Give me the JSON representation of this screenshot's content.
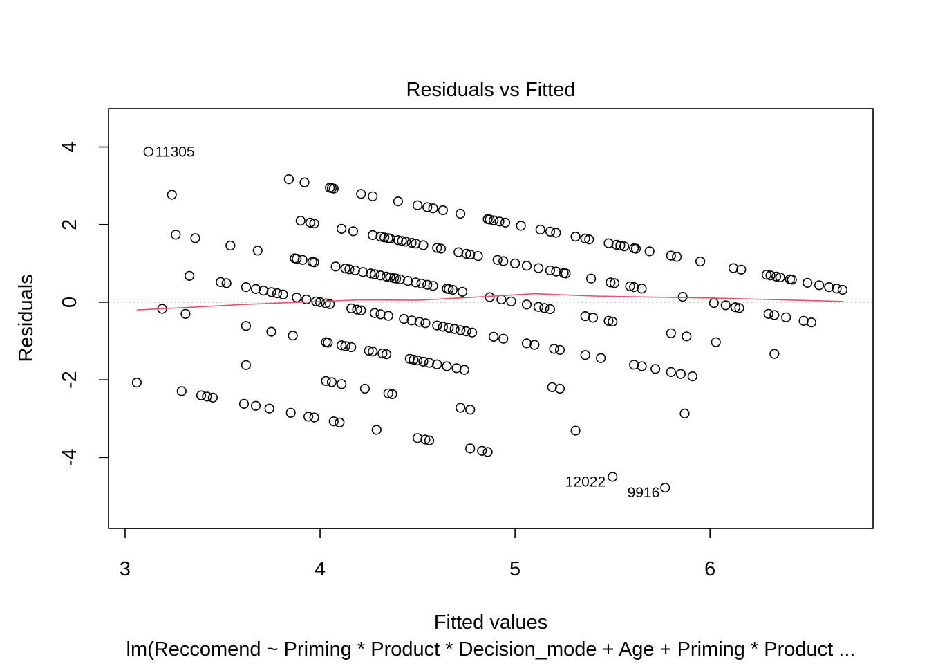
{
  "chart_data": {
    "type": "scatter",
    "title": "Residuals vs Fitted",
    "xlabel": "Fitted values",
    "ylabel": "Residuals",
    "subtitle": "lm(Reccomend ~ Priming * Product * Decision_mode + Age + Priming * Product  ...",
    "xlim": [
      2.915,
      6.836
    ],
    "ylim": [
      -5.83,
      4.99
    ],
    "x_ticks": [
      3,
      4,
      5,
      6
    ],
    "y_ticks": [
      -4,
      -2,
      0,
      2,
      4
    ],
    "x_tick_labels": [
      "3",
      "4",
      "5",
      "6"
    ],
    "y_tick_labels": [
      "-4",
      "-2",
      "0",
      "2",
      "4"
    ],
    "reference_line": {
      "y": 0,
      "style": "dotted",
      "color": "#bebebe"
    },
    "grid": false,
    "legend": "none",
    "point_style": "open-circle",
    "smoother_color": "#df536b",
    "smoother": [
      [
        3.06,
        -0.2
      ],
      [
        3.3,
        -0.14
      ],
      [
        3.6,
        -0.06
      ],
      [
        3.9,
        0.0
      ],
      [
        4.2,
        0.06
      ],
      [
        4.5,
        0.05
      ],
      [
        4.8,
        0.13
      ],
      [
        5.1,
        0.22
      ],
      [
        5.4,
        0.16
      ],
      [
        5.7,
        0.13
      ],
      [
        6.0,
        0.11
      ],
      [
        6.3,
        0.07
      ],
      [
        6.68,
        0.02
      ]
    ],
    "annotations": [
      {
        "label": "11305",
        "x": 3.12,
        "y": 3.88,
        "side": "right"
      },
      {
        "label": "12022",
        "x": 5.5,
        "y": -4.5,
        "side": "left"
      },
      {
        "label": "9916",
        "x": 5.77,
        "y": -4.78,
        "side": "left-below"
      }
    ],
    "points": [
      [
        3.12,
        3.88
      ],
      [
        3.24,
        2.77
      ],
      [
        3.26,
        1.74
      ],
      [
        3.36,
        1.65
      ],
      [
        3.33,
        0.68
      ],
      [
        3.19,
        -0.17
      ],
      [
        3.31,
        -0.3
      ],
      [
        3.06,
        -2.07
      ],
      [
        3.29,
        -2.29
      ],
      [
        3.39,
        -2.4
      ],
      [
        3.42,
        -2.43
      ],
      [
        3.45,
        -2.46
      ],
      [
        3.54,
        1.46
      ],
      [
        3.68,
        1.33
      ],
      [
        3.49,
        0.52
      ],
      [
        3.52,
        0.49
      ],
      [
        3.62,
        0.39
      ],
      [
        3.67,
        0.34
      ],
      [
        3.71,
        0.3
      ],
      [
        3.75,
        0.26
      ],
      [
        3.78,
        0.23
      ],
      [
        3.81,
        0.2
      ],
      [
        3.62,
        -0.61
      ],
      [
        3.75,
        -0.76
      ],
      [
        3.86,
        -0.86
      ],
      [
        3.62,
        -1.62
      ],
      [
        3.61,
        -2.62
      ],
      [
        3.67,
        -2.67
      ],
      [
        3.74,
        -2.74
      ],
      [
        3.85,
        -2.85
      ],
      [
        3.94,
        -2.95
      ],
      [
        3.97,
        -2.97
      ],
      [
        3.84,
        3.17
      ],
      [
        3.92,
        3.09
      ],
      [
        3.9,
        2.1
      ],
      [
        3.95,
        2.05
      ],
      [
        3.97,
        2.03
      ],
      [
        3.87,
        1.13
      ],
      [
        3.88,
        1.12
      ],
      [
        3.91,
        1.09
      ],
      [
        3.96,
        1.04
      ],
      [
        3.97,
        1.03
      ],
      [
        3.88,
        0.12
      ],
      [
        3.93,
        0.07
      ],
      [
        3.98,
        0.02
      ],
      [
        4.0,
        0.0
      ],
      [
        4.03,
        -0.03
      ],
      [
        4.05,
        -0.05
      ],
      [
        4.03,
        -1.03
      ],
      [
        4.04,
        -1.04
      ],
      [
        4.03,
        -2.03
      ],
      [
        4.06,
        -2.06
      ],
      [
        4.07,
        -3.07
      ],
      [
        4.1,
        -3.1
      ],
      [
        4.11,
        -2.11
      ],
      [
        4.05,
        2.95
      ],
      [
        4.06,
        2.94
      ],
      [
        4.07,
        2.93
      ],
      [
        4.21,
        2.79
      ],
      [
        4.27,
        2.73
      ],
      [
        4.11,
        1.89
      ],
      [
        4.17,
        1.83
      ],
      [
        4.08,
        0.92
      ],
      [
        4.13,
        0.87
      ],
      [
        4.15,
        0.85
      ],
      [
        4.18,
        0.82
      ],
      [
        4.22,
        0.78
      ],
      [
        4.26,
        0.74
      ],
      [
        4.28,
        0.72
      ],
      [
        4.16,
        -0.16
      ],
      [
        4.19,
        -0.19
      ],
      [
        4.21,
        -0.21
      ],
      [
        4.11,
        -1.11
      ],
      [
        4.13,
        -1.13
      ],
      [
        4.16,
        -1.16
      ],
      [
        4.23,
        -2.23
      ],
      [
        4.29,
        -3.29
      ],
      [
        4.27,
        1.73
      ],
      [
        4.31,
        1.69
      ],
      [
        4.33,
        1.67
      ],
      [
        4.35,
        1.65
      ],
      [
        4.36,
        1.64
      ],
      [
        4.4,
        1.6
      ],
      [
        4.42,
        1.58
      ],
      [
        4.44,
        1.56
      ],
      [
        4.47,
        1.53
      ],
      [
        4.49,
        1.51
      ],
      [
        4.53,
        1.47
      ],
      [
        4.31,
        0.69
      ],
      [
        4.34,
        0.66
      ],
      [
        4.36,
        0.64
      ],
      [
        4.38,
        0.62
      ],
      [
        4.39,
        0.61
      ],
      [
        4.41,
        0.59
      ],
      [
        4.45,
        0.55
      ],
      [
        4.49,
        0.51
      ],
      [
        4.52,
        0.48
      ],
      [
        4.55,
        0.45
      ],
      [
        4.58,
        0.42
      ],
      [
        4.28,
        -0.28
      ],
      [
        4.31,
        -0.31
      ],
      [
        4.35,
        -0.35
      ],
      [
        4.43,
        -0.43
      ],
      [
        4.47,
        -0.47
      ],
      [
        4.51,
        -0.51
      ],
      [
        4.54,
        -0.54
      ],
      [
        4.25,
        -1.25
      ],
      [
        4.27,
        -1.27
      ],
      [
        4.32,
        -1.32
      ],
      [
        4.34,
        -1.34
      ],
      [
        4.35,
        -2.35
      ],
      [
        4.37,
        -2.37
      ],
      [
        4.4,
        2.6
      ],
      [
        4.5,
        2.5
      ],
      [
        4.55,
        2.45
      ],
      [
        4.58,
        2.42
      ],
      [
        4.63,
        2.37
      ],
      [
        4.46,
        -1.46
      ],
      [
        4.48,
        -1.48
      ],
      [
        4.5,
        -1.5
      ],
      [
        4.53,
        -1.53
      ],
      [
        4.56,
        -1.56
      ],
      [
        4.6,
        -1.6
      ],
      [
        4.65,
        -1.65
      ],
      [
        4.5,
        -3.5
      ],
      [
        4.54,
        -3.54
      ],
      [
        4.56,
        -3.56
      ],
      [
        4.6,
        -0.6
      ],
      [
        4.63,
        -0.63
      ],
      [
        4.66,
        -0.66
      ],
      [
        4.69,
        -0.69
      ],
      [
        4.72,
        -0.72
      ],
      [
        4.75,
        -0.75
      ],
      [
        4.78,
        -0.78
      ],
      [
        4.6,
        1.4
      ],
      [
        4.62,
        1.38
      ],
      [
        4.65,
        0.35
      ],
      [
        4.66,
        0.34
      ],
      [
        4.68,
        0.32
      ],
      [
        4.73,
        0.27
      ],
      [
        4.72,
        2.28
      ],
      [
        4.71,
        1.29
      ],
      [
        4.75,
        1.25
      ],
      [
        4.77,
        1.23
      ],
      [
        4.81,
        1.19
      ],
      [
        4.7,
        -1.7
      ],
      [
        4.74,
        -1.74
      ],
      [
        4.72,
        -2.72
      ],
      [
        4.77,
        -2.77
      ],
      [
        4.77,
        -3.77
      ],
      [
        4.83,
        -3.83
      ],
      [
        4.86,
        -3.86
      ],
      [
        4.86,
        2.14
      ],
      [
        4.87,
        2.13
      ],
      [
        4.89,
        2.11
      ],
      [
        4.92,
        2.08
      ],
      [
        4.95,
        2.05
      ],
      [
        5.03,
        1.97
      ],
      [
        4.91,
        1.09
      ],
      [
        4.94,
        1.06
      ],
      [
        5.0,
        1.0
      ],
      [
        5.06,
        0.94
      ],
      [
        5.12,
        0.88
      ],
      [
        5.18,
        0.82
      ],
      [
        5.21,
        0.79
      ],
      [
        5.25,
        0.75
      ],
      [
        5.26,
        0.74
      ],
      [
        4.87,
        0.13
      ],
      [
        4.93,
        0.07
      ],
      [
        4.98,
        0.02
      ],
      [
        5.06,
        -0.06
      ],
      [
        5.12,
        -0.12
      ],
      [
        5.15,
        -0.15
      ],
      [
        5.18,
        -0.18
      ],
      [
        4.89,
        -0.89
      ],
      [
        4.94,
        -0.94
      ],
      [
        5.06,
        -1.06
      ],
      [
        5.1,
        -1.1
      ],
      [
        5.2,
        -1.2
      ],
      [
        5.23,
        -1.23
      ],
      [
        5.19,
        -2.19
      ],
      [
        5.23,
        -2.23
      ],
      [
        5.13,
        1.87
      ],
      [
        5.18,
        1.82
      ],
      [
        5.21,
        1.79
      ],
      [
        5.31,
        1.69
      ],
      [
        5.36,
        1.64
      ],
      [
        5.38,
        1.62
      ],
      [
        5.31,
        -3.31
      ],
      [
        5.5,
        -4.5
      ],
      [
        5.77,
        -4.78
      ],
      [
        5.39,
        0.61
      ],
      [
        5.36,
        -0.36
      ],
      [
        5.4,
        -0.4
      ],
      [
        5.48,
        -0.48
      ],
      [
        5.5,
        -0.5
      ],
      [
        5.36,
        -1.36
      ],
      [
        5.44,
        -1.44
      ],
      [
        5.48,
        1.52
      ],
      [
        5.52,
        1.48
      ],
      [
        5.54,
        1.46
      ],
      [
        5.56,
        1.44
      ],
      [
        5.61,
        1.39
      ],
      [
        5.62,
        1.38
      ],
      [
        5.69,
        1.31
      ],
      [
        5.49,
        0.51
      ],
      [
        5.51,
        0.49
      ],
      [
        5.59,
        0.41
      ],
      [
        5.61,
        0.39
      ],
      [
        5.65,
        0.35
      ],
      [
        5.61,
        -1.61
      ],
      [
        5.65,
        -1.65
      ],
      [
        5.72,
        -1.72
      ],
      [
        5.8,
        -1.8
      ],
      [
        5.85,
        -1.85
      ],
      [
        5.91,
        -1.91
      ],
      [
        5.8,
        -0.8
      ],
      [
        5.88,
        -0.88
      ],
      [
        5.86,
        0.14
      ],
      [
        5.87,
        -2.87
      ],
      [
        5.8,
        1.2
      ],
      [
        5.83,
        1.17
      ],
      [
        5.95,
        1.05
      ],
      [
        6.02,
        -0.02
      ],
      [
        6.08,
        -0.08
      ],
      [
        6.13,
        -0.13
      ],
      [
        6.15,
        -0.15
      ],
      [
        6.03,
        -1.03
      ],
      [
        6.12,
        0.88
      ],
      [
        6.16,
        0.84
      ],
      [
        6.29,
        0.71
      ],
      [
        6.31,
        0.69
      ],
      [
        6.34,
        0.66
      ],
      [
        6.36,
        0.64
      ],
      [
        6.41,
        0.59
      ],
      [
        6.42,
        0.58
      ],
      [
        6.5,
        0.5
      ],
      [
        6.56,
        0.44
      ],
      [
        6.61,
        0.39
      ],
      [
        6.65,
        0.35
      ],
      [
        6.68,
        0.32
      ],
      [
        6.3,
        -0.3
      ],
      [
        6.33,
        -0.33
      ],
      [
        6.39,
        -0.39
      ],
      [
        6.48,
        -0.48
      ],
      [
        6.52,
        -0.52
      ],
      [
        6.33,
        -1.33
      ]
    ]
  }
}
